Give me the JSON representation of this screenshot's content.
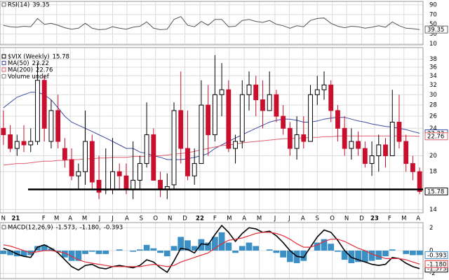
{
  "chart_data": [
    {
      "type": "line",
      "title": "RSI(14)",
      "color": "#555555",
      "values": [
        48,
        45,
        44,
        46,
        45,
        62,
        50,
        52,
        48,
        43,
        40,
        42,
        52,
        42,
        39,
        40,
        45,
        42,
        40,
        44,
        46,
        55,
        42,
        39,
        40,
        60,
        66,
        48,
        45,
        56,
        48,
        60,
        60,
        45,
        46,
        58,
        60,
        56,
        54,
        58,
        50,
        47,
        42,
        47,
        45,
        58,
        62,
        63,
        52,
        46,
        43,
        46,
        45,
        42,
        44,
        47,
        44,
        55,
        47,
        42,
        41,
        39.35
      ],
      "ylim": [
        8,
        97
      ],
      "yticks": [
        90,
        70,
        50,
        30,
        10
      ],
      "grid": true
    },
    {
      "type": "candlestick",
      "name": "$VIX (Weekly)",
      "up_color": "#000000",
      "down_color": "#c8102e",
      "open": [
        24,
        23,
        21,
        22,
        21.5,
        22,
        33,
        22,
        27,
        21,
        19.5,
        17.5,
        18,
        22,
        17,
        16,
        16,
        18,
        17.5,
        16,
        17,
        19,
        23,
        17,
        16,
        16.5,
        27,
        21,
        17.5,
        19,
        28,
        23,
        30,
        31,
        21,
        22,
        30,
        32,
        29,
        27,
        30,
        26,
        24,
        21,
        23,
        22,
        30,
        31,
        32,
        27,
        24,
        21,
        22,
        21,
        19,
        20,
        21.5,
        20,
        25,
        22,
        19,
        18
      ],
      "high": [
        27,
        24.5,
        23,
        24.5,
        24,
        37,
        34,
        29,
        30,
        22.5,
        21,
        19,
        27,
        23,
        20,
        21,
        22.5,
        19,
        19,
        22,
        20,
        28.5,
        24,
        18,
        17.8,
        28.5,
        35,
        27,
        21,
        33,
        32,
        39,
        37,
        33,
        23,
        33,
        35,
        34,
        33,
        35,
        31,
        28,
        25,
        26,
        26,
        32,
        34,
        35,
        33,
        28,
        26,
        24,
        23.5,
        22,
        22,
        23,
        22.5,
        31,
        30,
        23,
        20,
        18.5
      ],
      "low": [
        21.5,
        20.5,
        20,
        20.5,
        20.5,
        21.5,
        22,
        21,
        21,
        18.5,
        17,
        16,
        16.5,
        16,
        15,
        15.5,
        15.5,
        16,
        15.5,
        15,
        16,
        18.5,
        17,
        15.2,
        15,
        16,
        19,
        17,
        16.5,
        19,
        20,
        22,
        26,
        20.5,
        19,
        21,
        27,
        26,
        24,
        27,
        25,
        23,
        20,
        19.5,
        21,
        22,
        28,
        29,
        25,
        22,
        20,
        19.5,
        20,
        18.5,
        17.5,
        18,
        18.5,
        20,
        21,
        18,
        17,
        15.5
      ],
      "close": [
        23,
        21,
        22,
        21.5,
        22,
        33,
        24,
        27,
        22,
        19.5,
        17.5,
        18,
        22,
        16.8,
        15.7,
        16,
        18,
        17.5,
        16,
        17,
        19,
        23,
        17,
        16,
        16.3,
        27,
        21,
        17.5,
        19,
        28,
        23,
        30,
        31,
        21,
        22,
        30,
        32,
        29,
        27,
        30,
        26,
        24,
        21,
        23,
        22,
        30,
        31,
        32,
        27,
        24,
        21,
        22,
        21,
        19,
        20,
        21.5,
        20,
        25,
        22,
        19,
        18,
        15.78
      ],
      "overlays": [
        {
          "name": "MA(50)",
          "color": "#3b4ba5",
          "values": [
            27.5,
            28.5,
            29.5,
            30,
            30.5,
            30.5,
            30,
            29,
            27.5,
            26,
            25,
            24.5,
            24,
            23.5,
            23,
            22.5,
            22,
            21.5,
            21,
            21,
            20.5,
            20.3,
            20,
            19.8,
            19.5,
            19.5,
            19.5,
            19.6,
            19.8,
            20,
            20.3,
            21,
            21.5,
            22,
            22.5,
            23,
            23.5,
            24,
            24.5,
            25,
            25.3,
            25.5,
            25.5,
            25.3,
            25,
            25,
            25.2,
            25.5,
            25.7,
            25.8,
            25.8,
            25.5,
            25.2,
            25,
            24.7,
            24.5,
            24.3,
            24.2,
            24,
            23.8,
            23.5,
            23.22
          ]
        },
        {
          "name": "MA(200)",
          "color": "#e0606e",
          "values": [
            18.8,
            18.9,
            19.0,
            19.0,
            19.1,
            19.2,
            19.3,
            19.3,
            19.4,
            19.4,
            19.5,
            19.5,
            19.6,
            19.6,
            19.7,
            19.7,
            19.8,
            19.8,
            19.8,
            19.9,
            19.9,
            19.9,
            20.0,
            20.0,
            20.1,
            20.2,
            20.3,
            20.4,
            20.6,
            20.8,
            21.0,
            21.2,
            21.4,
            21.5,
            21.6,
            21.8,
            21.9,
            22.0,
            22.1,
            22.2,
            22.3,
            22.4,
            22.4,
            22.5,
            22.5,
            22.6,
            22.6,
            22.7,
            22.7,
            22.8,
            22.8,
            22.8,
            22.8,
            22.8,
            22.8,
            22.8,
            22.8,
            22.8,
            22.8,
            22.8,
            22.8,
            22.76
          ]
        }
      ],
      "annotation": "Volume undef",
      "reference_line": 16,
      "log_scale": true,
      "ylim": [
        13.7,
        41
      ],
      "yticks": [
        38,
        36,
        34,
        32,
        30,
        28,
        26,
        24,
        20,
        18,
        14
      ],
      "grid": true,
      "xlim": [
        0,
        62
      ],
      "xticks": [
        {
          "value": 0.5,
          "label": "N"
        },
        {
          "value": 2.3,
          "label": "21"
        },
        {
          "value": 6.4,
          "label": "F"
        },
        {
          "value": 8.3,
          "label": "M"
        },
        {
          "value": 10.3,
          "label": "A"
        },
        {
          "value": 12.4,
          "label": "M"
        },
        {
          "value": 14.6,
          "label": "J"
        },
        {
          "value": 16.5,
          "label": "J"
        },
        {
          "value": 18.6,
          "label": "A"
        },
        {
          "value": 20.7,
          "label": "S"
        },
        {
          "value": 22.8,
          "label": "O"
        },
        {
          "value": 24.9,
          "label": "N"
        },
        {
          "value": 27.1,
          "label": "D"
        },
        {
          "value": 29.3,
          "label": "22"
        },
        {
          "value": 31.5,
          "label": "F"
        },
        {
          "value": 33.6,
          "label": "M"
        },
        {
          "value": 35.8,
          "label": "A"
        },
        {
          "value": 38.0,
          "label": "M"
        },
        {
          "value": 40.3,
          "label": "J"
        },
        {
          "value": 42.4,
          "label": "J"
        },
        {
          "value": 44.4,
          "label": "A"
        },
        {
          "value": 46.5,
          "label": "S"
        },
        {
          "value": 48.7,
          "label": "O"
        },
        {
          "value": 50.8,
          "label": "N"
        },
        {
          "value": 53.0,
          "label": "D"
        },
        {
          "value": 54.9,
          "label": "23"
        },
        {
          "value": 57.1,
          "label": "F"
        },
        {
          "value": 59.2,
          "label": "M"
        },
        {
          "value": 61.3,
          "label": "A"
        }
      ]
    },
    {
      "type": "macd",
      "title": "MACD(12,26,9)",
      "title_values": [
        "-1.573,",
        "-1.180,",
        "-0.393"
      ],
      "series": [
        {
          "color": "#000000",
          "values": [
            0.2,
            0.0,
            -0.3,
            -0.5,
            -0.6,
            0.3,
            0.5,
            0.2,
            -0.2,
            -0.8,
            -1.4,
            -1.7,
            -1.3,
            -1.2,
            -1.5,
            -1.6,
            -1.4,
            -1.3,
            -1.4,
            -1.5,
            -1.3,
            -0.8,
            -1.0,
            -1.5,
            -1.9,
            -0.9,
            0.2,
            0.1,
            -0.2,
            0.6,
            0.5,
            1.4,
            2.2,
            1.6,
            0.8,
            1.5,
            2.0,
            1.9,
            1.6,
            1.7,
            1.3,
            0.7,
            0.0,
            -0.5,
            -0.6,
            0.3,
            1.2,
            1.8,
            1.6,
            0.9,
            0.0,
            -0.6,
            -0.8,
            -1.0,
            -1.2,
            -1.3,
            -1.2,
            -0.6,
            -0.7,
            -1.1,
            -1.4,
            -1.573
          ]
        },
        {
          "color": "#e0303a",
          "last_label": "-1.180",
          "values": [
            0.5,
            0.4,
            0.2,
            0.0,
            -0.2,
            -0.1,
            0.0,
            0.0,
            -0.1,
            -0.2,
            -0.5,
            -0.8,
            -1.0,
            -1.1,
            -1.2,
            -1.3,
            -1.4,
            -1.4,
            -1.4,
            -1.4,
            -1.4,
            -1.3,
            -1.2,
            -1.3,
            -1.4,
            -1.3,
            -1.0,
            -0.8,
            -0.6,
            -0.4,
            -0.2,
            0.2,
            0.6,
            0.9,
            1.0,
            1.1,
            1.3,
            1.5,
            1.6,
            1.6,
            1.5,
            1.3,
            1.0,
            0.6,
            0.3,
            0.3,
            0.5,
            0.8,
            1.0,
            1.0,
            0.8,
            0.5,
            0.2,
            0.0,
            -0.3,
            -0.5,
            -0.7,
            -0.7,
            -0.7,
            -0.8,
            -1.0,
            -1.18
          ]
        },
        {
          "color": "#3a8fc4",
          "style": "histogram",
          "values": [
            -0.3,
            -0.4,
            -0.5,
            -0.5,
            -0.4,
            0.4,
            0.5,
            0.2,
            -0.1,
            -0.6,
            -0.9,
            -0.9,
            -0.3,
            -0.1,
            -0.3,
            -0.3,
            0.0,
            0.1,
            0.0,
            -0.1,
            0.1,
            0.5,
            0.2,
            -0.2,
            -0.5,
            0.4,
            1.2,
            0.9,
            0.4,
            1.0,
            0.7,
            1.2,
            1.6,
            0.7,
            -0.2,
            0.4,
            0.7,
            0.4,
            0.0,
            0.1,
            -0.2,
            -0.6,
            -1.0,
            -1.1,
            -0.9,
            0.0,
            0.7,
            1.0,
            0.6,
            -0.1,
            -0.8,
            -1.1,
            -1.0,
            -1.0,
            -0.9,
            -0.8,
            -0.5,
            0.1,
            0.0,
            -0.3,
            -0.4,
            -0.393
          ]
        }
      ],
      "ylim": [
        -2.45,
        2.45
      ],
      "yticks": [
        2,
        0,
        -2
      ],
      "grid": true
    }
  ]
}
